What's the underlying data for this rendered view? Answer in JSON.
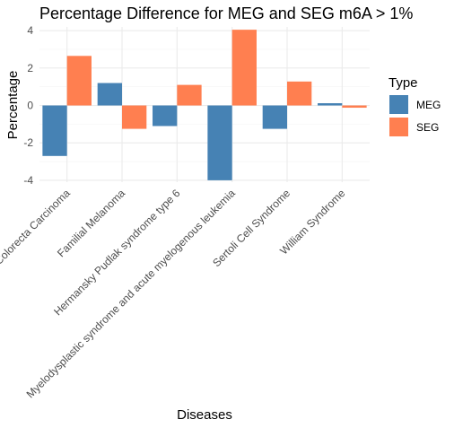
{
  "chart_data": {
    "type": "bar",
    "title": "Percentage Difference for MEG and SEG m6A > 1%",
    "xlabel": "Diseases",
    "ylabel": "Percentage",
    "ylim": [
      -4.1,
      4.2
    ],
    "yticks": [
      -4,
      -2,
      0,
      2,
      4
    ],
    "categories": [
      "Colorecta Carcinoma",
      "Familial Melanoma",
      "Hermansky Pudlak syndrome type 6",
      "Myelodysplastic syndrome and acute myelogenous leukemia",
      "Sertoli Cell Syndrome",
      "William Syndrome"
    ],
    "series": [
      {
        "name": "MEG",
        "color": "#4682B4",
        "values": [
          -2.7,
          1.2,
          -1.1,
          -4.0,
          -1.25,
          0.12
        ]
      },
      {
        "name": "SEG",
        "color": "#FF7F50",
        "values": [
          2.65,
          -1.25,
          1.1,
          4.05,
          1.28,
          -0.12
        ]
      }
    ],
    "legend": {
      "title": "Type",
      "placement": "right"
    },
    "grid": true
  }
}
